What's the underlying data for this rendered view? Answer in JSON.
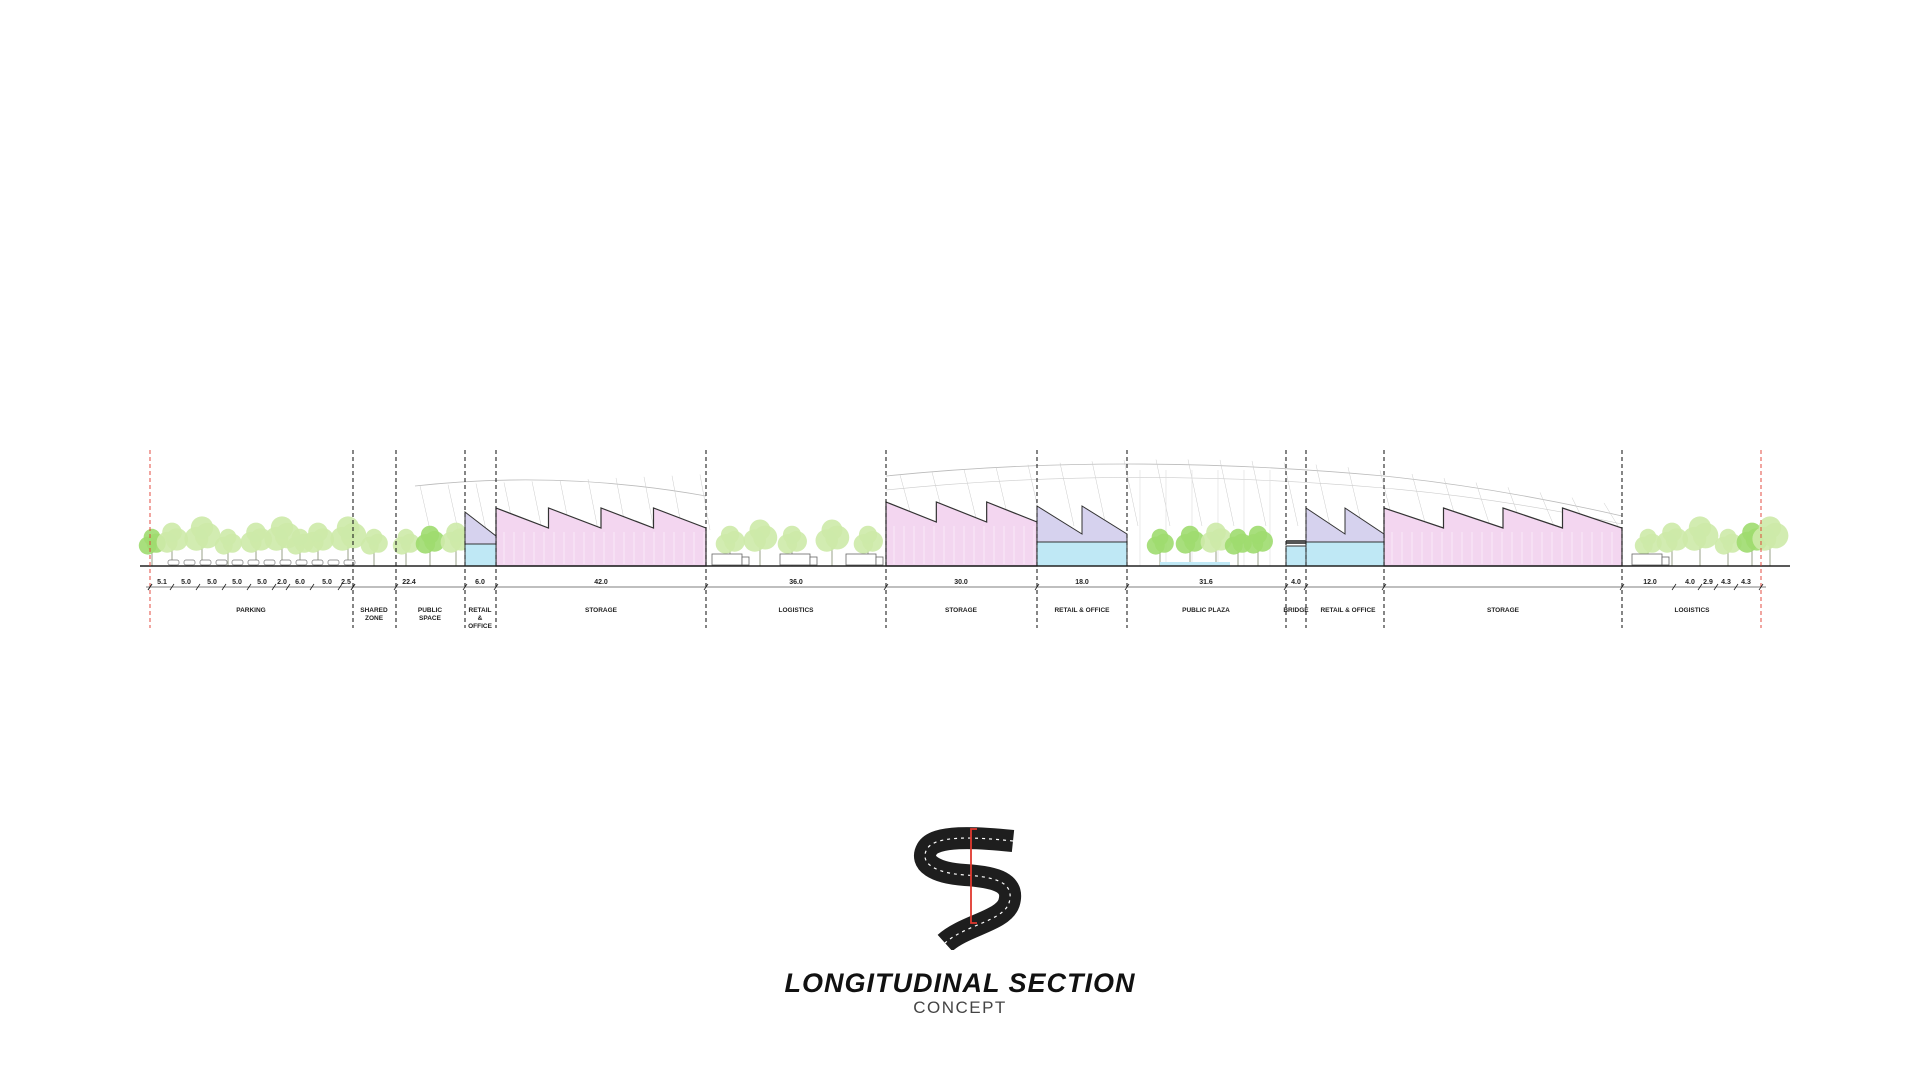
{
  "colors": {
    "storage_fill": "#f3d6f0",
    "retail_upper_fill": "#d6d2ee",
    "retail_lower_fill": "#bfe8f5",
    "tree_fill": "#cdeaa9",
    "tree_fill_bright": "#9fdc6f",
    "guide_red": "#e0392f",
    "line": "#222222"
  },
  "sub_dimensions": [
    "5.1",
    "5.0",
    "5.0",
    "5.0",
    "5.0",
    "2.0",
    "6.0",
    "5.0",
    "2.5"
  ],
  "zone_dimensions": [
    {
      "id": "public-space",
      "value": "22.4"
    },
    {
      "id": "retail-office-1",
      "value": "6.0"
    },
    {
      "id": "storage-1",
      "value": "42.0"
    },
    {
      "id": "logistics-1",
      "value": "36.0"
    },
    {
      "id": "storage-2",
      "value": "30.0"
    },
    {
      "id": "retail-office-2",
      "value": "18.0"
    },
    {
      "id": "public-plaza",
      "value": "31.6"
    },
    {
      "id": "bridge",
      "value": "4.0"
    },
    {
      "id": "logistics-2-a",
      "value": "12.0"
    },
    {
      "id": "logistics-2-b",
      "value": "4.0"
    },
    {
      "id": "logistics-2-c",
      "value": "2.9"
    },
    {
      "id": "logistics-2-d",
      "value": "4.3"
    },
    {
      "id": "logistics-2-e",
      "value": "4.3"
    }
  ],
  "zones": [
    {
      "id": "parking",
      "label_lines": [
        "PARKING"
      ]
    },
    {
      "id": "shared-zone",
      "label_lines": [
        "SHARED",
        "ZONE"
      ]
    },
    {
      "id": "public-space",
      "label_lines": [
        "PUBLIC",
        "SPACE"
      ]
    },
    {
      "id": "retail-office-1",
      "label_lines": [
        "RETAIL",
        "&",
        "OFFICE"
      ]
    },
    {
      "id": "storage-1",
      "label_lines": [
        "STORAGE"
      ]
    },
    {
      "id": "logistics-1",
      "label_lines": [
        "LOGISTICS"
      ]
    },
    {
      "id": "storage-2",
      "label_lines": [
        "STORAGE"
      ]
    },
    {
      "id": "retail-office-2",
      "label_lines": [
        "RETAIL & OFFICE"
      ]
    },
    {
      "id": "public-plaza",
      "label_lines": [
        "PUBLIC PLAZA"
      ]
    },
    {
      "id": "bridge",
      "label_lines": [
        "BRIDGE"
      ]
    },
    {
      "id": "retail-office-3",
      "label_lines": [
        "RETAIL & OFFICE"
      ]
    },
    {
      "id": "storage-3",
      "label_lines": [
        "STORAGE"
      ]
    },
    {
      "id": "logistics-2",
      "label_lines": [
        "LOGISTICS"
      ]
    }
  ],
  "title": {
    "main": "LONGITUDINAL SECTION",
    "sub": "CONCEPT"
  }
}
